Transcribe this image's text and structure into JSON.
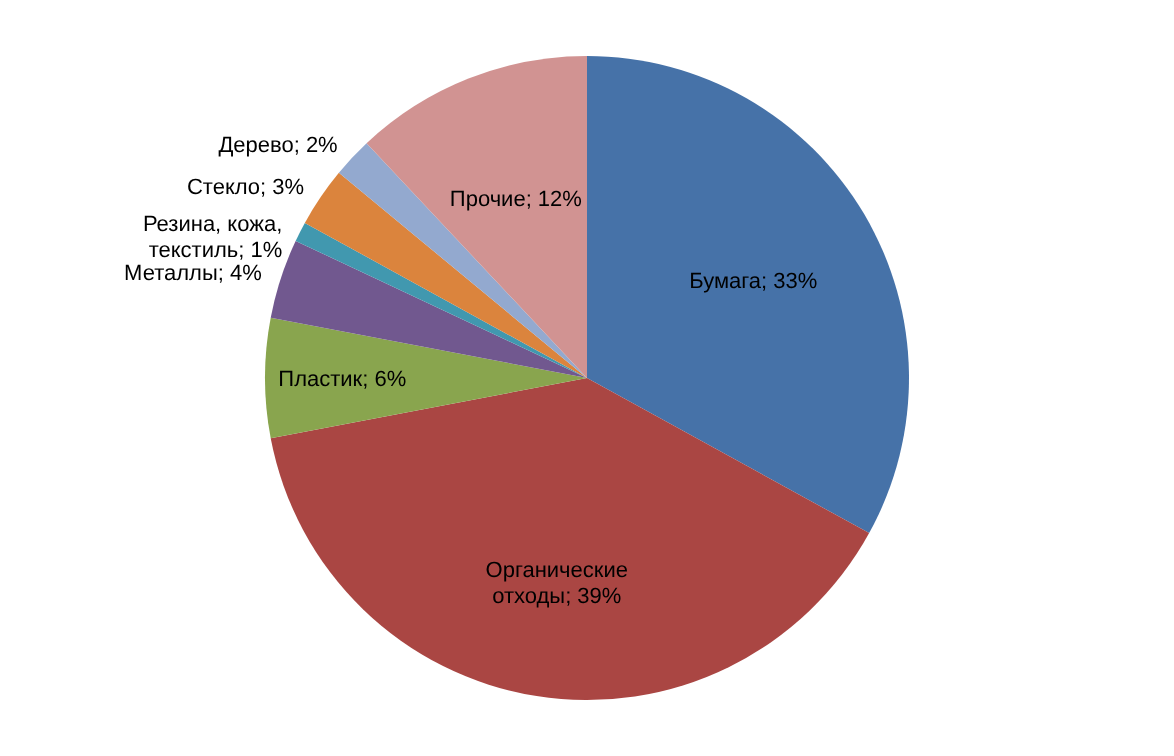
{
  "chart_data": {
    "type": "pie",
    "categories": [
      "Бумага",
      "Органические отходы",
      "Пластик",
      "Металлы",
      "Резина, кожа, текстиль",
      "Стекло",
      "Дерево",
      "Прочие"
    ],
    "values": [
      33,
      39,
      6,
      4,
      1,
      3,
      2,
      12
    ],
    "value_labels": [
      "33%",
      "39%",
      "6%",
      "4%",
      "1%",
      "3%",
      "2%",
      "12%"
    ],
    "colors": [
      "#4672a8",
      "#aa4643",
      "#89a54e",
      "#71588f",
      "#4198af",
      "#db843d",
      "#93a9cf",
      "#d19392"
    ]
  }
}
